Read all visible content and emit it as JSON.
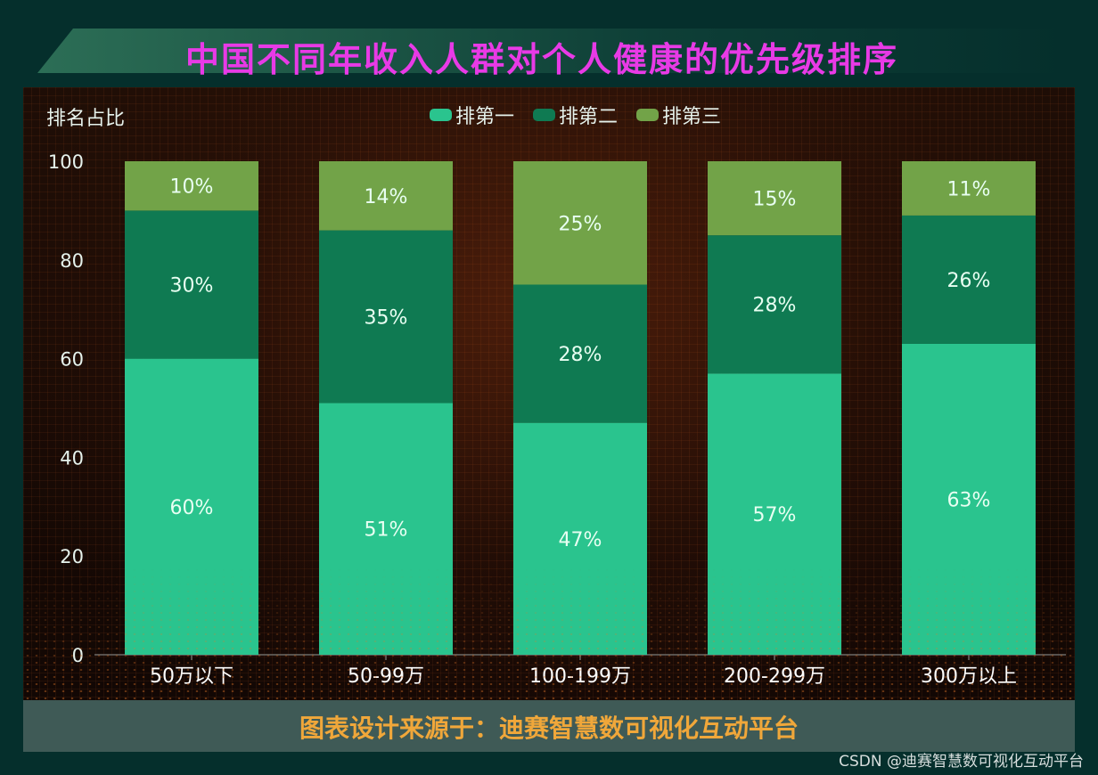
{
  "title": "中国不同年收入人群对个人健康的优先级排序",
  "footer": "图表设计来源于：迪赛智慧数可视化互动平台",
  "watermark": "CSDN @迪赛智慧数可视化互动平台",
  "chart_data": {
    "type": "bar",
    "stacked": true,
    "ylabel": "排名占比",
    "xlabel": "",
    "ylim": [
      0,
      100
    ],
    "yticks": [
      0,
      20,
      40,
      60,
      80,
      100
    ],
    "legend_position": "top",
    "categories": [
      "50万以下",
      "50-99万",
      "100-199万",
      "200-299万",
      "300万以上"
    ],
    "series": [
      {
        "name": "排第一",
        "color": "#2ac48e",
        "values": [
          60,
          51,
          47,
          57,
          63
        ],
        "labels": [
          "60%",
          "51%",
          "47%",
          "57%",
          "63%"
        ]
      },
      {
        "name": "排第二",
        "color": "#0f7a52",
        "values": [
          30,
          35,
          28,
          28,
          26
        ],
        "labels": [
          "30%",
          "35%",
          "28%",
          "28%",
          "26%"
        ]
      },
      {
        "name": "排第三",
        "color": "#72a348",
        "values": [
          10,
          14,
          25,
          15,
          11
        ],
        "labels": [
          "10%",
          "14%",
          "25%",
          "15%",
          "11%"
        ]
      }
    ]
  }
}
